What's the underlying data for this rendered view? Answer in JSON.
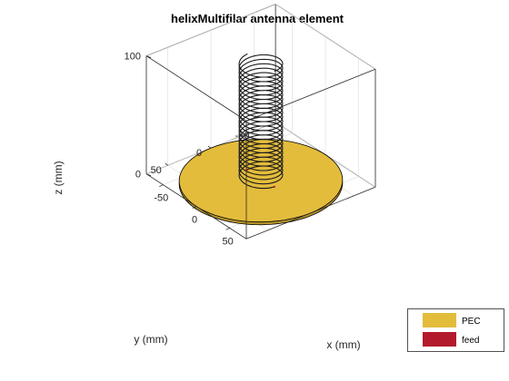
{
  "chart_data": {
    "type": "3d-surface",
    "title": "helixMultifilar antenna element",
    "xlabel": "x (mm)",
    "ylabel": "y (mm)",
    "zlabel": "z (mm)",
    "x_ticks": [
      "-50",
      "0",
      "50"
    ],
    "y_ticks": [
      "-50",
      "0",
      "50"
    ],
    "z_ticks": [
      "0",
      "100"
    ],
    "xlim": [
      -75,
      75
    ],
    "ylim": [
      -75,
      75
    ],
    "zlim": [
      0,
      100
    ],
    "grid": true,
    "ground_plane": {
      "shape": "disc",
      "radius": 75,
      "z": 0,
      "color": "#e3bc3c"
    },
    "helix": {
      "radius": 20,
      "turns": 13,
      "z_start": 2,
      "z_end": 100,
      "filaments": 2,
      "color": "#1a1a1a"
    },
    "legend": {
      "position": "bottom-right",
      "entries": [
        {
          "label": "PEC",
          "color": "#e3bc3c"
        },
        {
          "label": "feed",
          "color": "#b31b2c"
        }
      ]
    }
  }
}
